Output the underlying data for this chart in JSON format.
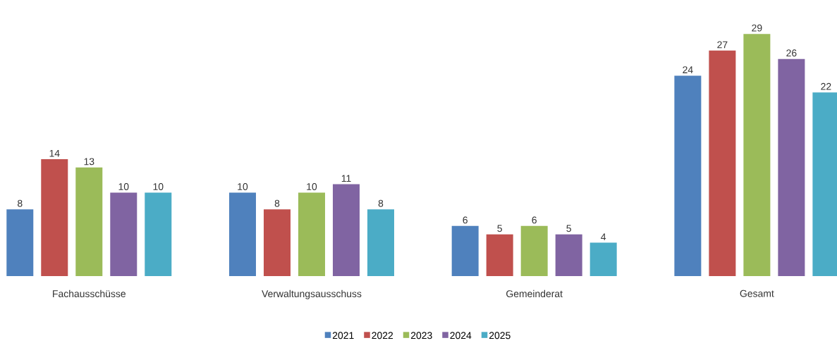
{
  "chart_data": {
    "type": "bar",
    "categories": [
      "Fachausschüsse",
      "Verwaltungsausschuss",
      "Gemeinderat",
      "Gesamt"
    ],
    "series": [
      {
        "name": "2021",
        "color": "#4f81bd",
        "values": [
          8,
          10,
          6,
          24
        ]
      },
      {
        "name": "2022",
        "color": "#c0504d",
        "values": [
          14,
          8,
          5,
          27
        ]
      },
      {
        "name": "2023",
        "color": "#9bbb59",
        "values": [
          13,
          10,
          6,
          29
        ]
      },
      {
        "name": "2024",
        "color": "#8064a2",
        "values": [
          10,
          11,
          5,
          26
        ]
      },
      {
        "name": "2025",
        "color": "#4bacc6",
        "values": [
          10,
          8,
          4,
          22
        ]
      }
    ],
    "tick_labels": "x",
    "data_labels": true,
    "legend": "bottom"
  }
}
